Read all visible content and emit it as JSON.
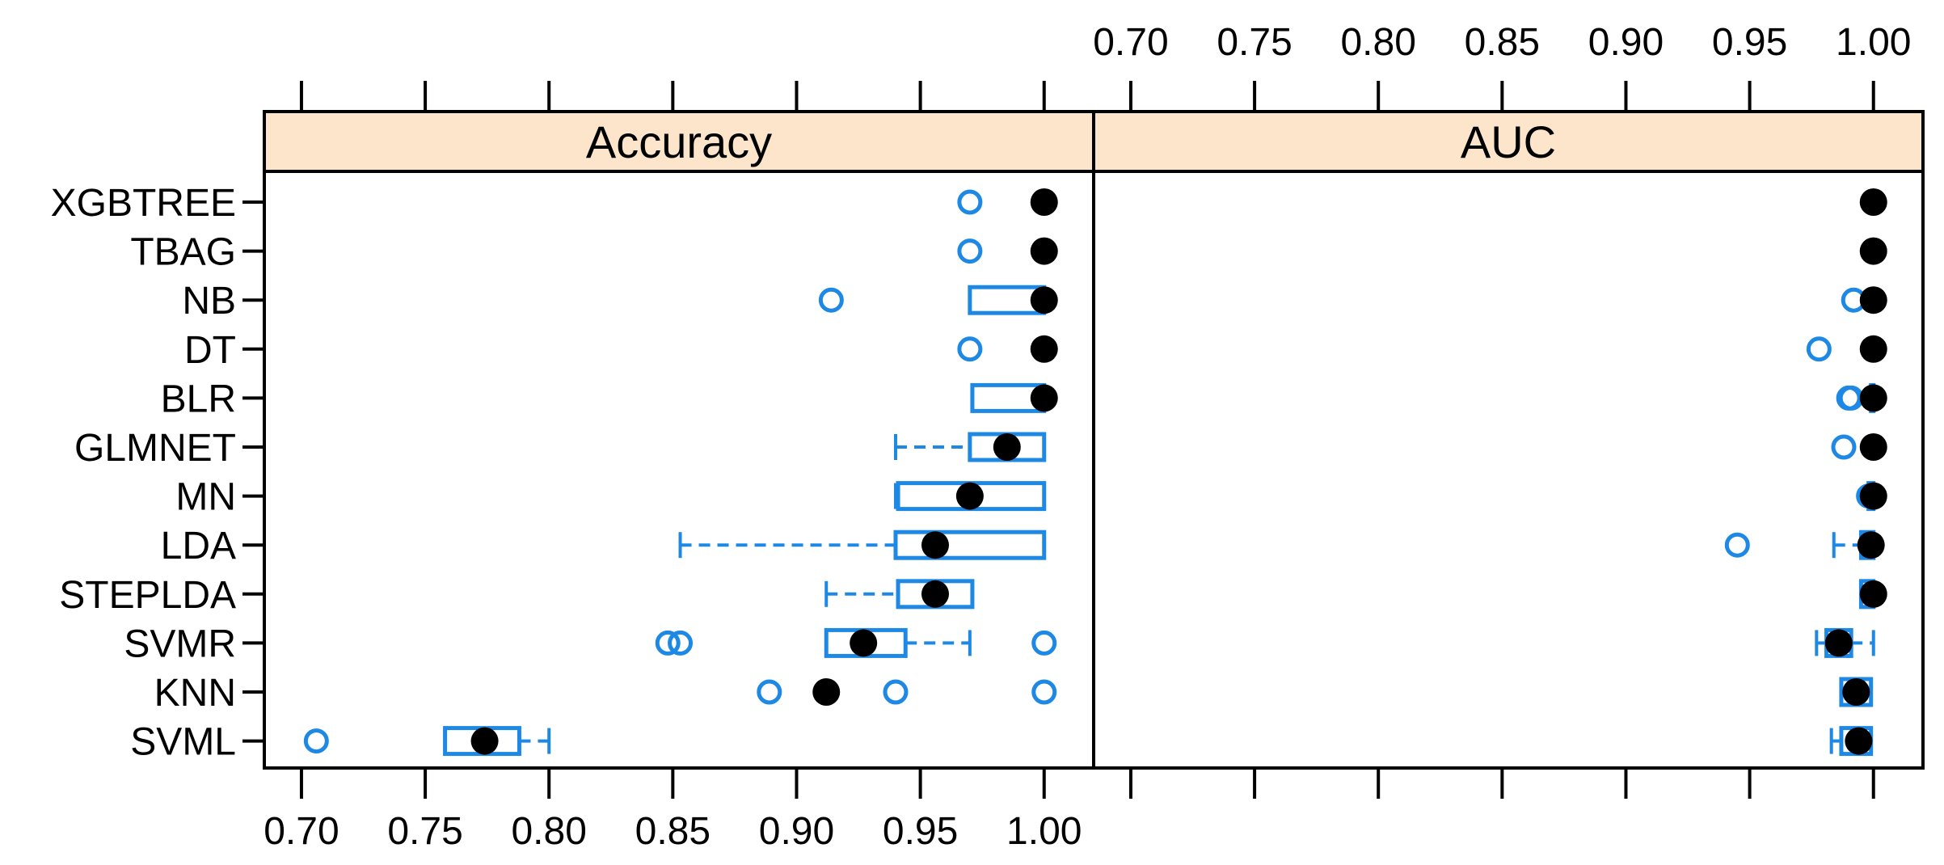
{
  "chart_data": {
    "type": "box",
    "layout": "trellis-two-panels-side-by-side",
    "categories": [
      "XGBTREE",
      "TBAG",
      "NB",
      "DT",
      "BLR",
      "GLMNET",
      "MN",
      "LDA",
      "STEPLDA",
      "SVMR",
      "KNN",
      "SVML"
    ],
    "ticks": [
      "0.70",
      "0.75",
      "0.80",
      "0.85",
      "0.90",
      "0.95",
      "1.00"
    ],
    "xlim": [
      0.685,
      1.02
    ],
    "colors": {
      "box": "#1E88E5",
      "median": "#000000",
      "strip": "#FDE5CC",
      "axis": "#000000"
    },
    "panels": [
      {
        "name": "Accuracy",
        "tick_labels_position": "bottom",
        "stats": [
          {
            "category": "XGBTREE",
            "min": 1.0,
            "q1": 1.0,
            "median": 1.0,
            "q3": 1.0,
            "max": 1.0,
            "outliers": [
              0.97
            ]
          },
          {
            "category": "TBAG",
            "min": 1.0,
            "q1": 1.0,
            "median": 1.0,
            "q3": 1.0,
            "max": 1.0,
            "outliers": [
              0.97
            ]
          },
          {
            "category": "NB",
            "min": 0.97,
            "q1": 0.97,
            "median": 1.0,
            "q3": 1.0,
            "max": 1.0,
            "outliers": [
              0.914
            ]
          },
          {
            "category": "DT",
            "min": 1.0,
            "q1": 1.0,
            "median": 1.0,
            "q3": 1.0,
            "max": 1.0,
            "outliers": [
              0.97
            ]
          },
          {
            "category": "BLR",
            "min": 0.971,
            "q1": 0.971,
            "median": 1.0,
            "q3": 1.0,
            "max": 1.0,
            "outliers": []
          },
          {
            "category": "GLMNET",
            "min": 0.94,
            "q1": 0.97,
            "median": 0.985,
            "q3": 1.0,
            "max": 1.0,
            "outliers": []
          },
          {
            "category": "MN",
            "min": 0.94,
            "q1": 0.941,
            "median": 0.97,
            "q3": 1.0,
            "max": 1.0,
            "outliers": []
          },
          {
            "category": "LDA",
            "min": 0.853,
            "q1": 0.94,
            "median": 0.956,
            "q3": 1.0,
            "max": 1.0,
            "outliers": []
          },
          {
            "category": "STEPLDA",
            "min": 0.912,
            "q1": 0.941,
            "median": 0.956,
            "q3": 0.971,
            "max": 0.971,
            "outliers": []
          },
          {
            "category": "SVMR",
            "min": 0.912,
            "q1": 0.912,
            "median": 0.927,
            "q3": 0.944,
            "max": 0.97,
            "outliers": [
              0.848,
              0.853,
              1.0
            ]
          },
          {
            "category": "KNN",
            "min": 0.912,
            "q1": 0.912,
            "median": 0.912,
            "q3": 0.912,
            "max": 0.912,
            "outliers": [
              0.889,
              0.94,
              1.0
            ]
          },
          {
            "category": "SVML",
            "min": 0.758,
            "q1": 0.758,
            "median": 0.774,
            "q3": 0.788,
            "max": 0.8,
            "outliers": [
              0.706
            ]
          }
        ]
      },
      {
        "name": "AUC",
        "tick_labels_position": "top",
        "stats": [
          {
            "category": "XGBTREE",
            "min": 1.0,
            "q1": 1.0,
            "median": 1.0,
            "q3": 1.0,
            "max": 1.0,
            "outliers": []
          },
          {
            "category": "TBAG",
            "min": 1.0,
            "q1": 1.0,
            "median": 1.0,
            "q3": 1.0,
            "max": 1.0,
            "outliers": []
          },
          {
            "category": "NB",
            "min": 1.0,
            "q1": 1.0,
            "median": 1.0,
            "q3": 1.0,
            "max": 1.0,
            "outliers": [
              0.992
            ]
          },
          {
            "category": "DT",
            "min": 1.0,
            "q1": 1.0,
            "median": 1.0,
            "q3": 1.0,
            "max": 1.0,
            "outliers": [
              0.978
            ]
          },
          {
            "category": "BLR",
            "min": 0.999,
            "q1": 0.999,
            "median": 1.0,
            "q3": 1.0,
            "max": 1.0,
            "outliers": [
              0.991,
              0.99
            ]
          },
          {
            "category": "GLMNET",
            "min": 1.0,
            "q1": 1.0,
            "median": 1.0,
            "q3": 1.0,
            "max": 1.0,
            "outliers": [
              0.988
            ]
          },
          {
            "category": "MN",
            "min": 0.998,
            "q1": 0.998,
            "median": 1.0,
            "q3": 1.0,
            "max": 1.0,
            "outliers": [
              0.998
            ]
          },
          {
            "category": "LDA",
            "min": 0.984,
            "q1": 0.995,
            "median": 0.999,
            "q3": 1.0,
            "max": 1.0,
            "outliers": [
              0.945
            ]
          },
          {
            "category": "STEPLDA",
            "min": 0.995,
            "q1": 0.995,
            "median": 1.0,
            "q3": 1.0,
            "max": 1.0,
            "outliers": []
          },
          {
            "category": "SVMR",
            "min": 0.977,
            "q1": 0.981,
            "median": 0.986,
            "q3": 0.991,
            "max": 1.0,
            "outliers": []
          },
          {
            "category": "KNN",
            "min": 0.987,
            "q1": 0.987,
            "median": 0.993,
            "q3": 0.999,
            "max": 0.999,
            "outliers": []
          },
          {
            "category": "SVML",
            "min": 0.983,
            "q1": 0.987,
            "median": 0.994,
            "q3": 0.999,
            "max": 0.999,
            "outliers": []
          }
        ]
      }
    ]
  }
}
